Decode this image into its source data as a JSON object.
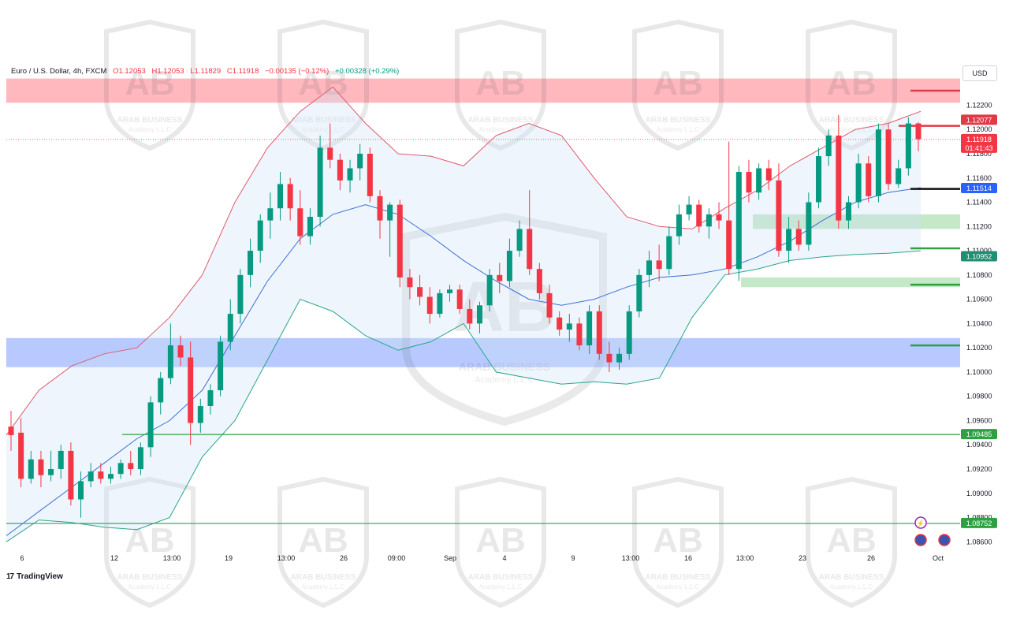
{
  "header": {
    "symbol": "Euro / U.S. Dollar, 4h, FXCM",
    "open": "O1.12053",
    "high": "H1.12053",
    "low": "L1.11829",
    "close": "C1.11918",
    "change": "−0.00135 (−0.12%)",
    "alt_change": "+0.00328 (+0.29%)"
  },
  "currency_button": "USD",
  "branding": "TradingView",
  "watermark": {
    "line1": "ARAB BUSINESS",
    "line2": "Academy L.L.C"
  },
  "price_labels": {
    "resistance_top": "1.12077",
    "current": "1.11918",
    "countdown": "01:41:43",
    "blue_marker": "1.11514",
    "lower_band": "1.10952",
    "support_1": "1.09485",
    "support_2": "1.08752"
  },
  "colors": {
    "up": "#089981",
    "down": "#f23645",
    "upper_band": "#e05a6a",
    "middle_band": "#3a6fd8",
    "lower_band": "#2aa58a",
    "blue_zone": "#7b9cff",
    "red_zone": "#ff9aa2",
    "green_zone": "#9fd8a0"
  },
  "chart_data": {
    "type": "candlestick",
    "yrange": [
      1.0855,
      1.1245
    ],
    "x_ticks": [
      "6",
      "12",
      "13:00",
      "19",
      "13:00",
      "26",
      "09:00",
      "Sep",
      "4",
      "9",
      "13:00",
      "16",
      "13:00",
      "23",
      "26",
      "Oct"
    ],
    "y_ticks": [
      "1.12200",
      "1.12000",
      "1.11800",
      "1.11600",
      "1.11400",
      "1.11200",
      "1.11000",
      "1.10800",
      "1.10600",
      "1.10400",
      "1.10200",
      "1.10000",
      "1.09800",
      "1.09600",
      "1.09400",
      "1.09200",
      "1.09000",
      "1.08800",
      "1.08600"
    ],
    "candles": [
      {
        "o": 1.0955,
        "h": 1.0968,
        "l": 1.0935,
        "c": 1.0948
      },
      {
        "o": 1.095,
        "h": 1.0962,
        "l": 1.0905,
        "c": 1.0912
      },
      {
        "o": 1.0912,
        "h": 1.0935,
        "l": 1.0908,
        "c": 1.0928
      },
      {
        "o": 1.0928,
        "h": 1.0935,
        "l": 1.0905,
        "c": 1.0915
      },
      {
        "o": 1.0915,
        "h": 1.0935,
        "l": 1.091,
        "c": 1.092
      },
      {
        "o": 1.092,
        "h": 1.094,
        "l": 1.0912,
        "c": 1.0935
      },
      {
        "o": 1.0935,
        "h": 1.0942,
        "l": 1.089,
        "c": 1.0895
      },
      {
        "o": 1.0895,
        "h": 1.0918,
        "l": 1.088,
        "c": 1.091
      },
      {
        "o": 1.091,
        "h": 1.0925,
        "l": 1.0905,
        "c": 1.0918
      },
      {
        "o": 1.0918,
        "h": 1.0925,
        "l": 1.0908,
        "c": 1.0912
      },
      {
        "o": 1.0912,
        "h": 1.0922,
        "l": 1.0908,
        "c": 1.0916
      },
      {
        "o": 1.0916,
        "h": 1.0928,
        "l": 1.0912,
        "c": 1.0925
      },
      {
        "o": 1.0925,
        "h": 1.0935,
        "l": 1.0915,
        "c": 1.092
      },
      {
        "o": 1.092,
        "h": 1.0942,
        "l": 1.0915,
        "c": 1.0938
      },
      {
        "o": 1.0938,
        "h": 1.098,
        "l": 1.093,
        "c": 1.0975
      },
      {
        "o": 1.0975,
        "h": 1.1,
        "l": 1.0965,
        "c": 1.0995
      },
      {
        "o": 1.0995,
        "h": 1.104,
        "l": 1.099,
        "c": 1.1022
      },
      {
        "o": 1.1022,
        "h": 1.103,
        "l": 1.1005,
        "c": 1.1012
      },
      {
        "o": 1.1012,
        "h": 1.1025,
        "l": 1.094,
        "c": 1.0958
      },
      {
        "o": 1.0958,
        "h": 1.0978,
        "l": 1.095,
        "c": 1.0972
      },
      {
        "o": 1.0972,
        "h": 1.099,
        "l": 1.0965,
        "c": 1.0985
      },
      {
        "o": 1.0985,
        "h": 1.103,
        "l": 1.098,
        "c": 1.1025
      },
      {
        "o": 1.1025,
        "h": 1.106,
        "l": 1.1018,
        "c": 1.1048
      },
      {
        "o": 1.1048,
        "h": 1.1085,
        "l": 1.104,
        "c": 1.108
      },
      {
        "o": 1.108,
        "h": 1.111,
        "l": 1.107,
        "c": 1.11
      },
      {
        "o": 1.11,
        "h": 1.113,
        "l": 1.109,
        "c": 1.1125
      },
      {
        "o": 1.1125,
        "h": 1.1148,
        "l": 1.111,
        "c": 1.1135
      },
      {
        "o": 1.1135,
        "h": 1.1165,
        "l": 1.1125,
        "c": 1.1155
      },
      {
        "o": 1.1155,
        "h": 1.116,
        "l": 1.1125,
        "c": 1.1135
      },
      {
        "o": 1.1135,
        "h": 1.115,
        "l": 1.1105,
        "c": 1.1112
      },
      {
        "o": 1.1112,
        "h": 1.1135,
        "l": 1.1105,
        "c": 1.1128
      },
      {
        "o": 1.1128,
        "h": 1.1195,
        "l": 1.112,
        "c": 1.1185
      },
      {
        "o": 1.1185,
        "h": 1.1205,
        "l": 1.1168,
        "c": 1.1175
      },
      {
        "o": 1.1175,
        "h": 1.118,
        "l": 1.115,
        "c": 1.1158
      },
      {
        "o": 1.1158,
        "h": 1.1175,
        "l": 1.1148,
        "c": 1.1168
      },
      {
        "o": 1.1168,
        "h": 1.1188,
        "l": 1.1158,
        "c": 1.118
      },
      {
        "o": 1.118,
        "h": 1.1185,
        "l": 1.114,
        "c": 1.1145
      },
      {
        "o": 1.1145,
        "h": 1.115,
        "l": 1.111,
        "c": 1.1125
      },
      {
        "o": 1.1125,
        "h": 1.114,
        "l": 1.1095,
        "c": 1.1138
      },
      {
        "o": 1.1138,
        "h": 1.1142,
        "l": 1.107,
        "c": 1.1078
      },
      {
        "o": 1.1078,
        "h": 1.1085,
        "l": 1.106,
        "c": 1.107
      },
      {
        "o": 1.107,
        "h": 1.108,
        "l": 1.1055,
        "c": 1.1062
      },
      {
        "o": 1.1062,
        "h": 1.107,
        "l": 1.104,
        "c": 1.1048
      },
      {
        "o": 1.1048,
        "h": 1.1068,
        "l": 1.1045,
        "c": 1.1065
      },
      {
        "o": 1.1065,
        "h": 1.1072,
        "l": 1.1058,
        "c": 1.1068
      },
      {
        "o": 1.1068,
        "h": 1.1072,
        "l": 1.1048,
        "c": 1.1052
      },
      {
        "o": 1.1052,
        "h": 1.106,
        "l": 1.1035,
        "c": 1.104
      },
      {
        "o": 1.104,
        "h": 1.1058,
        "l": 1.1032,
        "c": 1.1055
      },
      {
        "o": 1.1055,
        "h": 1.1085,
        "l": 1.105,
        "c": 1.108
      },
      {
        "o": 1.108,
        "h": 1.109,
        "l": 1.1065,
        "c": 1.1075
      },
      {
        "o": 1.1075,
        "h": 1.111,
        "l": 1.107,
        "c": 1.11
      },
      {
        "o": 1.11,
        "h": 1.1125,
        "l": 1.1095,
        "c": 1.1118
      },
      {
        "o": 1.1118,
        "h": 1.115,
        "l": 1.108,
        "c": 1.1085
      },
      {
        "o": 1.1085,
        "h": 1.109,
        "l": 1.106,
        "c": 1.1065
      },
      {
        "o": 1.1065,
        "h": 1.1072,
        "l": 1.104,
        "c": 1.1045
      },
      {
        "o": 1.1045,
        "h": 1.105,
        "l": 1.103,
        "c": 1.1035
      },
      {
        "o": 1.1035,
        "h": 1.1048,
        "l": 1.1025,
        "c": 1.104
      },
      {
        "o": 1.104,
        "h": 1.1045,
        "l": 1.1018,
        "c": 1.1022
      },
      {
        "o": 1.1022,
        "h": 1.1055,
        "l": 1.1015,
        "c": 1.105
      },
      {
        "o": 1.105,
        "h": 1.1055,
        "l": 1.101,
        "c": 1.1015
      },
      {
        "o": 1.1015,
        "h": 1.1025,
        "l": 1.1,
        "c": 1.1008
      },
      {
        "o": 1.1008,
        "h": 1.102,
        "l": 1.1002,
        "c": 1.1015
      },
      {
        "o": 1.1015,
        "h": 1.1055,
        "l": 1.101,
        "c": 1.105
      },
      {
        "o": 1.105,
        "h": 1.1085,
        "l": 1.1045,
        "c": 1.108
      },
      {
        "o": 1.108,
        "h": 1.11,
        "l": 1.107,
        "c": 1.1092
      },
      {
        "o": 1.1092,
        "h": 1.1105,
        "l": 1.1075,
        "c": 1.1085
      },
      {
        "o": 1.1085,
        "h": 1.112,
        "l": 1.108,
        "c": 1.1112
      },
      {
        "o": 1.1112,
        "h": 1.1138,
        "l": 1.1105,
        "c": 1.113
      },
      {
        "o": 1.113,
        "h": 1.1145,
        "l": 1.1125,
        "c": 1.1138
      },
      {
        "o": 1.1138,
        "h": 1.1142,
        "l": 1.1115,
        "c": 1.112
      },
      {
        "o": 1.112,
        "h": 1.1135,
        "l": 1.111,
        "c": 1.113
      },
      {
        "o": 1.113,
        "h": 1.114,
        "l": 1.1118,
        "c": 1.1125
      },
      {
        "o": 1.1125,
        "h": 1.119,
        "l": 1.108,
        "c": 1.1085
      },
      {
        "o": 1.1085,
        "h": 1.117,
        "l": 1.1075,
        "c": 1.1165
      },
      {
        "o": 1.1165,
        "h": 1.1175,
        "l": 1.114,
        "c": 1.1148
      },
      {
        "o": 1.1148,
        "h": 1.1172,
        "l": 1.1142,
        "c": 1.1168
      },
      {
        "o": 1.1168,
        "h": 1.1175,
        "l": 1.115,
        "c": 1.1158
      },
      {
        "o": 1.1158,
        "h": 1.1172,
        "l": 1.1095,
        "c": 1.11
      },
      {
        "o": 1.11,
        "h": 1.1128,
        "l": 1.109,
        "c": 1.1118
      },
      {
        "o": 1.1118,
        "h": 1.1125,
        "l": 1.11,
        "c": 1.1105
      },
      {
        "o": 1.1105,
        "h": 1.1148,
        "l": 1.11,
        "c": 1.114
      },
      {
        "o": 1.114,
        "h": 1.1185,
        "l": 1.1135,
        "c": 1.1178
      },
      {
        "o": 1.1178,
        "h": 1.12,
        "l": 1.117,
        "c": 1.1195
      },
      {
        "o": 1.1195,
        "h": 1.1212,
        "l": 1.1118,
        "c": 1.1125
      },
      {
        "o": 1.1125,
        "h": 1.1145,
        "l": 1.1118,
        "c": 1.114
      },
      {
        "o": 1.114,
        "h": 1.118,
        "l": 1.1135,
        "c": 1.1172
      },
      {
        "o": 1.1172,
        "h": 1.1178,
        "l": 1.114,
        "c": 1.1145
      },
      {
        "o": 1.1145,
        "h": 1.1205,
        "l": 1.114,
        "c": 1.12
      },
      {
        "o": 1.12,
        "h": 1.1205,
        "l": 1.115,
        "c": 1.1155
      },
      {
        "o": 1.1155,
        "h": 1.1175,
        "l": 1.1152,
        "c": 1.1168
      },
      {
        "o": 1.1168,
        "h": 1.121,
        "l": 1.1162,
        "c": 1.1205
      },
      {
        "o": 1.1205,
        "h": 1.1206,
        "l": 1.1182,
        "c": 1.1192
      }
    ],
    "bollinger_upper": [
      1.0948,
      1.0985,
      1.1005,
      1.1015,
      1.102,
      1.1045,
      1.108,
      1.114,
      1.1185,
      1.1215,
      1.1235,
      1.1205,
      1.118,
      1.1178,
      1.117,
      1.1195,
      1.1205,
      1.1195,
      1.116,
      1.1128,
      1.112,
      1.1118,
      1.1135,
      1.115,
      1.117,
      1.1185,
      1.12,
      1.1205,
      1.1215
    ],
    "bollinger_middle": [
      1.0865,
      1.0885,
      1.0905,
      1.0925,
      1.0945,
      1.096,
      1.0985,
      1.103,
      1.1075,
      1.111,
      1.113,
      1.1138,
      1.113,
      1.1112,
      1.1092,
      1.1075,
      1.106,
      1.1055,
      1.106,
      1.107,
      1.1078,
      1.108,
      1.1085,
      1.1095,
      1.1108,
      1.1125,
      1.114,
      1.1148,
      1.1152
    ],
    "bollinger_lower": [
      1.086,
      1.0878,
      1.0876,
      1.0872,
      1.087,
      1.088,
      1.093,
      1.096,
      1.101,
      1.106,
      1.105,
      1.103,
      1.1018,
      1.1025,
      1.104,
      1.1,
      1.0995,
      1.099,
      1.0992,
      1.099,
      1.0995,
      1.1045,
      1.108,
      1.1085,
      1.1092,
      1.1095,
      1.1097,
      1.1098,
      1.11
    ],
    "zones": [
      {
        "name": "red-resistance-zone",
        "from": 1.1222,
        "to": 1.1242
      },
      {
        "name": "blue-support-zone",
        "from": 1.1004,
        "to": 1.1028
      },
      {
        "name": "green-demand-zone-upper",
        "from": 1.1118,
        "to": 1.113
      },
      {
        "name": "green-demand-zone-lower",
        "from": 1.107,
        "to": 1.1078
      }
    ],
    "levels": [
      1.1232,
      1.1203,
      1.1151,
      1.1102,
      1.1072,
      1.1022,
      1.09485,
      1.08752
    ]
  }
}
